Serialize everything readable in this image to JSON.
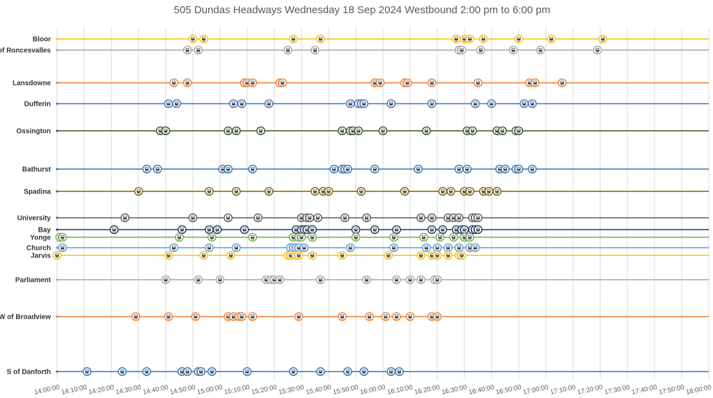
{
  "chart_data": {
    "type": "scatter",
    "title": "505 Dundas Headways Wednesday 18 Sep 2024 Westbound 2:00 pm to 6:00 pm",
    "x_ticks": [
      "14:00:00",
      "14:10:00",
      "14:20:00",
      "14:30:00",
      "14:40:00",
      "14:50:00",
      "15:00:00",
      "15:10:00",
      "15:20:00",
      "15:30:00",
      "15:40:00",
      "15:50:00",
      "16:00:00",
      "16:10:00",
      "16:20:00",
      "16:30:00",
      "16:40:00",
      "16:50:00",
      "17:00:00",
      "17:10:00",
      "17:20:00",
      "17:30:00",
      "17:40:00",
      "17:50:00",
      "18:00:00"
    ],
    "xlim": [
      "14:00",
      "18:00"
    ],
    "grid": "vertical",
    "marker_icon": "streetcar-icon",
    "series": [
      {
        "name": "Bloor",
        "color": "#ffc000",
        "times": [
          "14:50",
          "14:54",
          "15:27",
          "15:37",
          "16:27",
          "16:30",
          "16:32",
          "16:37",
          "16:50",
          "17:02",
          "17:21"
        ]
      },
      {
        "name": "E of Roncesvalles",
        "color": "#a5a5a5",
        "times": [
          "14:48",
          "14:52",
          "15:25",
          "15:35",
          "16:28",
          "16:29",
          "16:36",
          "16:48",
          "16:58",
          "17:19"
        ]
      },
      {
        "name": "Lansdowne",
        "color": "#ed7d31",
        "times": [
          "14:43",
          "14:48",
          "15:09",
          "15:10",
          "15:12",
          "15:22",
          "15:23",
          "15:57",
          "15:59",
          "16:08",
          "16:09",
          "16:18",
          "16:35",
          "16:54",
          "16:56",
          "17:06"
        ]
      },
      {
        "name": "Dufferin",
        "color": "#4472c4",
        "times": [
          "14:41",
          "14:44",
          "15:05",
          "15:08",
          "15:18",
          "15:48",
          "15:51",
          "15:52",
          "15:53",
          "16:03",
          "16:18",
          "16:34",
          "16:40",
          "16:52",
          "16:55"
        ]
      },
      {
        "name": "Ossington",
        "color": "#375623",
        "times": [
          "14:38",
          "14:40",
          "15:03",
          "15:06",
          "15:15",
          "15:45",
          "15:48",
          "15:49",
          "15:51",
          "16:00",
          "16:16",
          "16:31",
          "16:33",
          "16:42",
          "16:44",
          "16:49",
          "16:50"
        ]
      },
      {
        "name": "Bathurst",
        "color": "#2e75b6",
        "times": [
          "14:33",
          "14:37",
          "15:01",
          "15:03",
          "15:12",
          "15:42",
          "15:45",
          "15:46",
          "15:47",
          "15:57",
          "16:13",
          "16:28",
          "16:31",
          "16:43",
          "16:45",
          "16:49",
          "16:50",
          "16:55"
        ]
      },
      {
        "name": "Spadina",
        "color": "#7f6000",
        "times": [
          "14:30",
          "14:56",
          "15:06",
          "15:18",
          "15:35",
          "15:38",
          "15:40",
          "15:52",
          "16:08",
          "16:22",
          "16:25",
          "16:30",
          "16:32",
          "16:37",
          "16:39",
          "16:42"
        ]
      },
      {
        "name": "University",
        "color": "#595959",
        "times": [
          "14:25",
          "14:50",
          "15:03",
          "15:14",
          "15:30",
          "15:32",
          "15:33",
          "15:36",
          "15:46",
          "15:54",
          "16:14",
          "16:18",
          "16:24",
          "16:26",
          "16:28",
          "16:33",
          "16:34",
          "16:35"
        ]
      },
      {
        "name": "Bay",
        "color": "#1f3864",
        "times": [
          "14:21",
          "14:46",
          "14:56",
          "14:59",
          "15:09",
          "15:28",
          "15:30",
          "15:31",
          "15:32",
          "15:34",
          "15:50",
          "15:57",
          "16:05",
          "16:18",
          "16:22",
          "16:27",
          "16:29",
          "16:30",
          "16:33",
          "16:34",
          "16:35"
        ]
      },
      {
        "name": "Yonge",
        "color": "#70ad47",
        "times": [
          "14:01",
          "14:02",
          "14:45",
          "14:57",
          "15:12",
          "15:27",
          "15:29",
          "15:30",
          "15:34",
          "15:50",
          "16:04",
          "16:15",
          "16:21",
          "16:26",
          "16:30",
          "16:32"
        ]
      },
      {
        "name": "Church",
        "color": "#5b9bd5",
        "times": [
          "14:02",
          "14:43",
          "14:56",
          "15:06",
          "15:26",
          "15:27",
          "15:28",
          "15:29",
          "15:31",
          "15:48",
          "16:04",
          "16:16",
          "16:20",
          "16:24",
          "16:28",
          "16:32",
          "16:34"
        ]
      },
      {
        "name": "Jarvis",
        "color": "#ffc000",
        "times": [
          "14:00",
          "14:41",
          "14:54",
          "15:04",
          "15:25",
          "15:26",
          "15:28",
          "15:29",
          "15:34",
          "15:45",
          "16:02",
          "16:14",
          "16:18",
          "16:20",
          "16:24",
          "16:28",
          "16:29"
        ]
      },
      {
        "name": "Parliament",
        "color": "#a5a5a5",
        "times": [
          "14:40",
          "14:52",
          "15:00",
          "15:17",
          "15:19",
          "15:20",
          "15:22",
          "15:37",
          "15:54",
          "16:05",
          "16:10",
          "16:14",
          "16:19",
          "16:20"
        ]
      },
      {
        "name": "W of Broadview",
        "color": "#ed7d31",
        "times": [
          "14:29",
          "14:41",
          "14:51",
          "15:03",
          "15:05",
          "15:07",
          "15:08",
          "15:12",
          "15:29",
          "15:45",
          "15:55",
          "16:01",
          "16:05",
          "16:10",
          "16:18",
          "16:20"
        ]
      },
      {
        "name": "S of Danforth",
        "color": "#2e75b6",
        "times": [
          "14:11",
          "14:24",
          "14:33",
          "14:46",
          "14:48",
          "14:52",
          "14:53",
          "14:57",
          "15:10",
          "15:27",
          "15:37",
          "15:47",
          "15:53",
          "16:03",
          "16:06"
        ]
      }
    ]
  }
}
